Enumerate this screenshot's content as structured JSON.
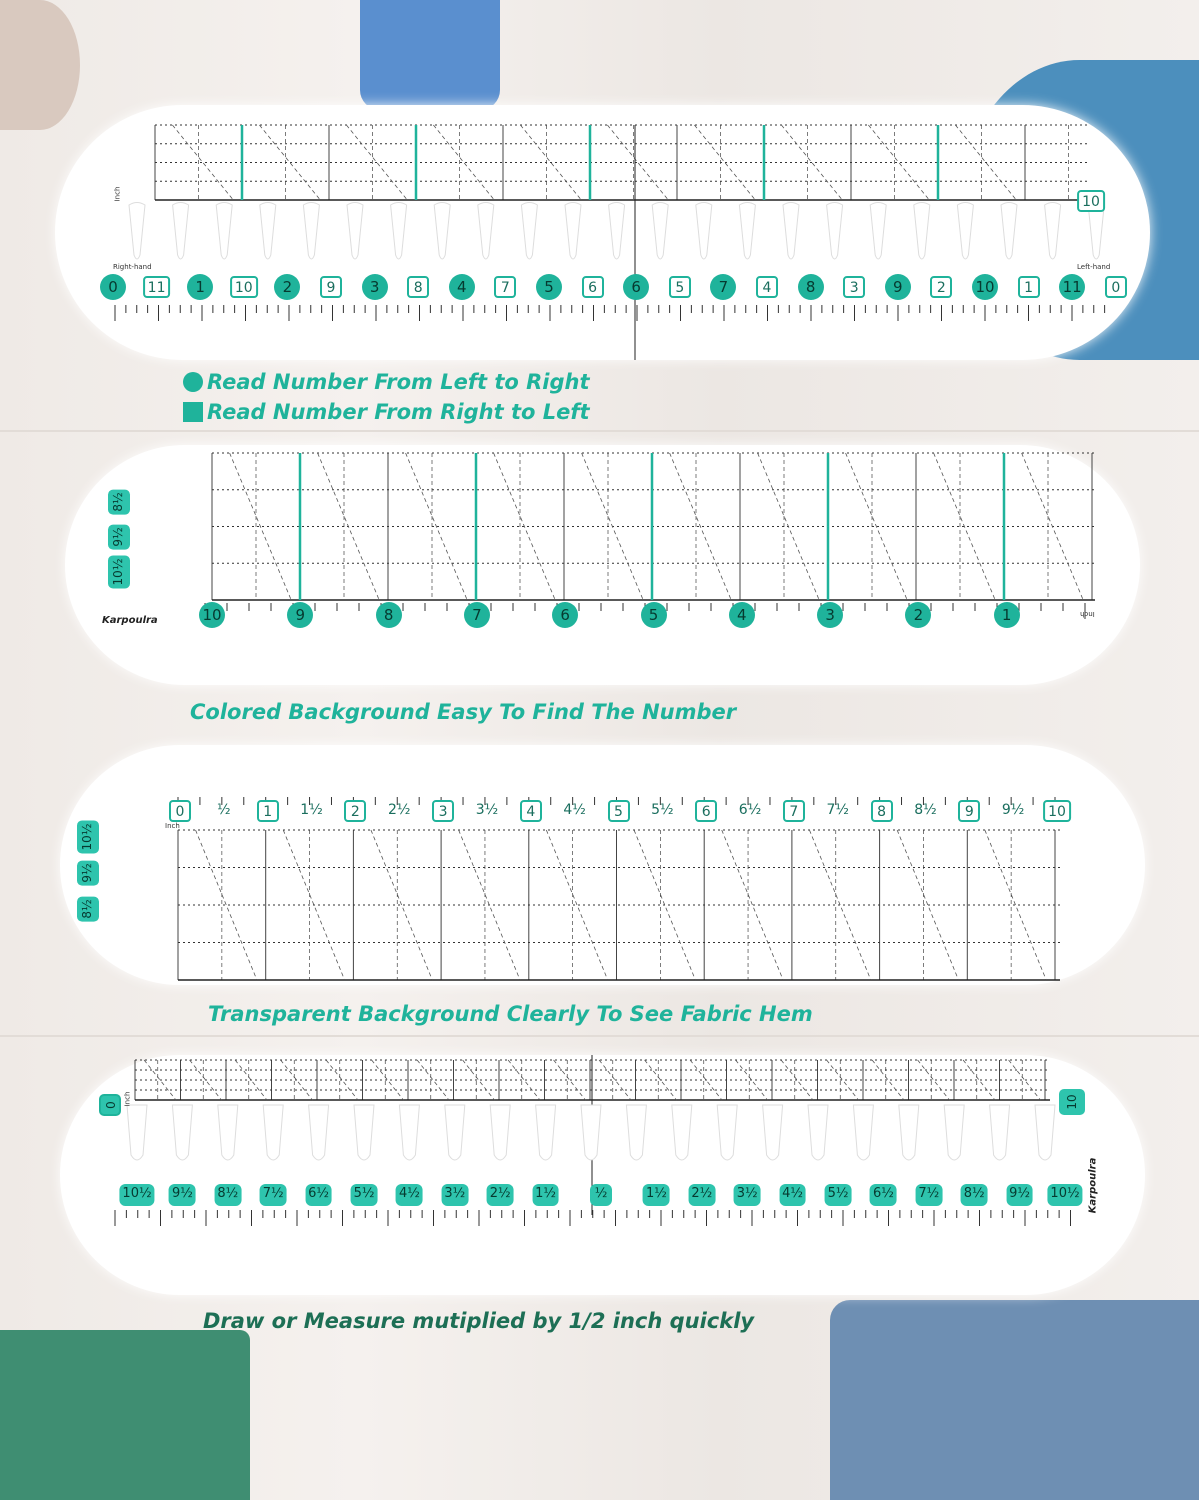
{
  "colors": {
    "accent": "#1fb39b",
    "accent_dark": "#1d6f55",
    "panel": "#ffffff"
  },
  "panel1": {
    "unit": "Inch",
    "right_hand": "Right-hand",
    "left_hand": "Left-hand",
    "side_label": "10",
    "bottom_labels": [
      [
        "0",
        "circle"
      ],
      [
        "11",
        "square"
      ],
      [
        "1",
        "circle"
      ],
      [
        "10",
        "square"
      ],
      [
        "2",
        "circle"
      ],
      [
        "9",
        "square"
      ],
      [
        "3",
        "circle"
      ],
      [
        "8",
        "square"
      ],
      [
        "4",
        "circle"
      ],
      [
        "7",
        "square"
      ],
      [
        "5",
        "circle"
      ],
      [
        "6",
        "square"
      ],
      [
        "6",
        "circle"
      ],
      [
        "5",
        "square"
      ],
      [
        "7",
        "circle"
      ],
      [
        "4",
        "square"
      ],
      [
        "8",
        "circle"
      ],
      [
        "3",
        "square"
      ],
      [
        "9",
        "circle"
      ],
      [
        "2",
        "square"
      ],
      [
        "10",
        "circle"
      ],
      [
        "1",
        "square"
      ],
      [
        "11",
        "circle"
      ],
      [
        "0",
        "square"
      ]
    ]
  },
  "legend": {
    "circle_text": "Read Number From Left to Right",
    "square_text": "Read Number From Right to Left",
    "circle_icon": "circle-icon",
    "square_icon": "square-icon"
  },
  "panel2": {
    "unit": "Inch",
    "brand": "Karpoulra",
    "bottom_labels": [
      "10",
      "9",
      "8",
      "7",
      "6",
      "5",
      "4",
      "3",
      "2",
      "1"
    ],
    "side_labels": [
      "8½",
      "9½",
      "10½"
    ]
  },
  "caption2": "Colored Background Easy To Find The Number",
  "panel3": {
    "unit": "Inch",
    "top_labels": [
      "0",
      "½",
      "1",
      "1½",
      "2",
      "2½",
      "3",
      "3½",
      "4",
      "4½",
      "5",
      "5½",
      "6",
      "6½",
      "7",
      "7½",
      "8",
      "8½",
      "9",
      "9½",
      "10"
    ],
    "side_labels": [
      "10½",
      "9½",
      "8½"
    ]
  },
  "caption3": "Transparent Background Clearly To See Fabric Hem",
  "panel4": {
    "unit": "Inch",
    "brand": "Karpoulra",
    "start_label": "0",
    "end_label": "10",
    "bottom_labels": [
      "10½",
      "9½",
      "8½",
      "7½",
      "6½",
      "5½",
      "4½",
      "3½",
      "2½",
      "1½",
      "½",
      "1½",
      "2½",
      "3½",
      "4½",
      "5½",
      "6½",
      "7½",
      "8½",
      "9½",
      "10½"
    ]
  },
  "caption4": "Draw or Measure mutiplied by 1/2 inch quickly"
}
